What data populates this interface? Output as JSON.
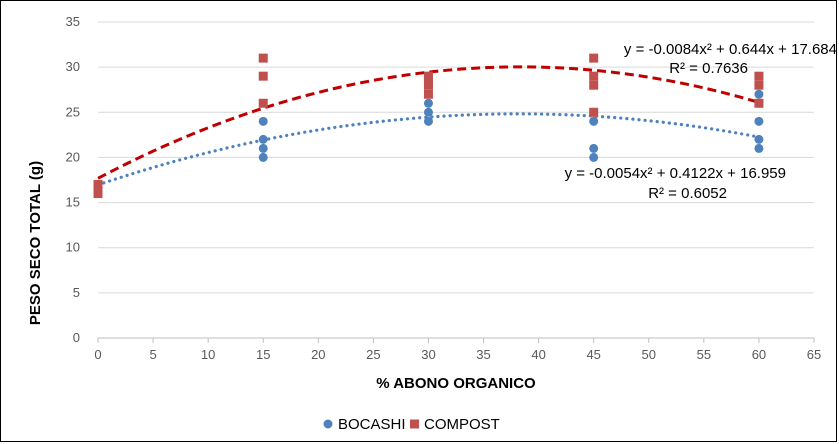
{
  "chart_data": {
    "type": "scatter",
    "xlabel": "% ABONO ORGANICO",
    "ylabel": "PESO SECO TOTAL  (g)",
    "xlim": [
      0,
      65
    ],
    "ylim": [
      0,
      35
    ],
    "x_ticks": [
      "0",
      "5",
      "10",
      "15",
      "20",
      "25",
      "30",
      "35",
      "40",
      "45",
      "50",
      "55",
      "60",
      "65"
    ],
    "y_ticks": [
      "0",
      "5",
      "10",
      "15",
      "20",
      "25",
      "30",
      "35"
    ],
    "grid": "horizontal",
    "legend_position": "bottom",
    "series": [
      {
        "name": "BOCASHI",
        "color": "#4f81bd",
        "marker": "circle",
        "points": [
          [
            0,
            16
          ],
          [
            0,
            17
          ],
          [
            15,
            20
          ],
          [
            15,
            21
          ],
          [
            15,
            22
          ],
          [
            15,
            24
          ],
          [
            30,
            24
          ],
          [
            30,
            25
          ],
          [
            30,
            26
          ],
          [
            45,
            20
          ],
          [
            45,
            21
          ],
          [
            45,
            24
          ],
          [
            45,
            25
          ],
          [
            60,
            21
          ],
          [
            60,
            22
          ],
          [
            60,
            24
          ],
          [
            60,
            27
          ]
        ],
        "trendline": {
          "a": -0.0054,
          "b": 0.4122,
          "c": 16.959,
          "style": "dotted",
          "equation": "y = -0.0054x² + 0.4122x + 16.959",
          "r2": "R² = 0.6052"
        }
      },
      {
        "name": "COMPOST",
        "color": "#c0504d",
        "marker": "square",
        "points": [
          [
            0,
            16
          ],
          [
            0,
            16.5
          ],
          [
            0,
            17
          ],
          [
            15,
            26
          ],
          [
            15,
            29
          ],
          [
            15,
            31
          ],
          [
            30,
            27
          ],
          [
            30,
            28
          ],
          [
            30,
            28.5
          ],
          [
            30,
            29
          ],
          [
            45,
            25
          ],
          [
            45,
            28
          ],
          [
            45,
            29
          ],
          [
            45,
            31
          ],
          [
            60,
            26
          ],
          [
            60,
            28
          ],
          [
            60,
            29
          ]
        ],
        "trendline": {
          "a": -0.0084,
          "b": 0.644,
          "c": 17.684,
          "style": "dashed",
          "color": "#c00000",
          "equation": "y = -0.0084x² + 0.644x + 17.684",
          "r2": "R² = 0.7636"
        }
      }
    ]
  }
}
